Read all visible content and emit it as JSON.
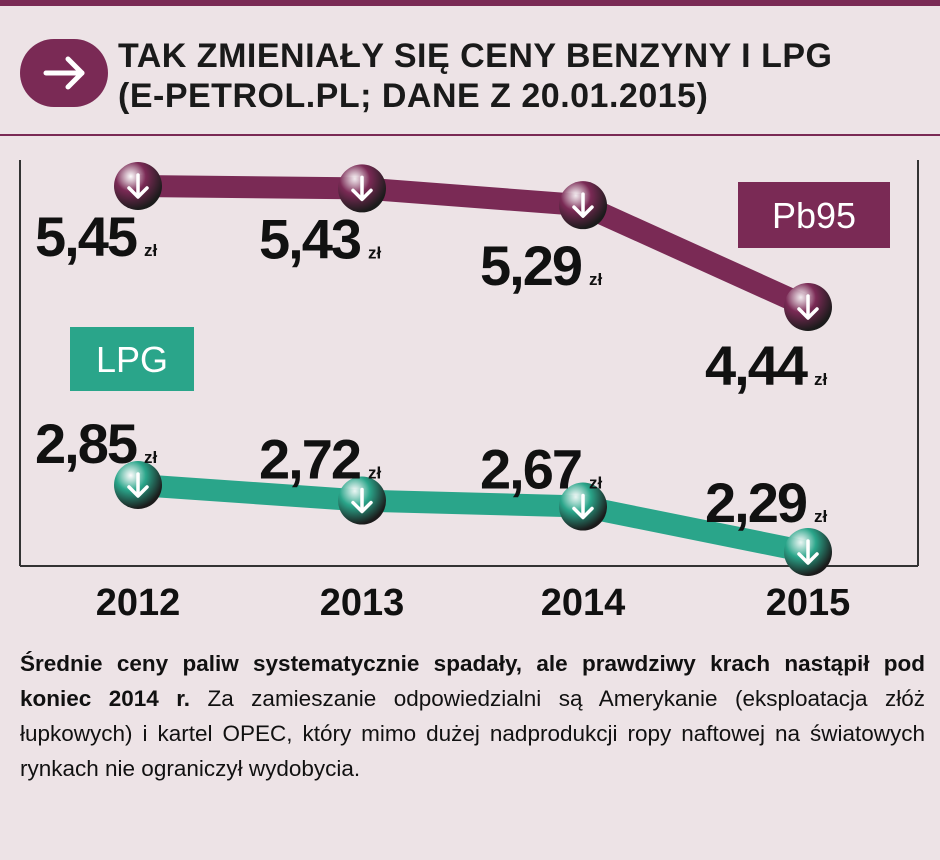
{
  "title": {
    "line1": "TAK ZMIENIAŁY SIĘ CENY BENZYNY I LPG",
    "line2": "(E-PETROL.PL; DANE Z 20.01.2015)"
  },
  "colors": {
    "pb95": "#7a2a55",
    "lpg": "#2aa58a",
    "background": "#ede3e6",
    "header_bg": "#ede3e6"
  },
  "icons": {
    "header": "arrow-right-icon",
    "points": "arrow-down-icon"
  },
  "chart_data": {
    "type": "line",
    "categories": [
      "2012",
      "2013",
      "2014",
      "2015"
    ],
    "unit": "zł",
    "ylim": [
      2.0,
      5.6
    ],
    "grid": false,
    "series": [
      {
        "name": "Pb95",
        "values": [
          5.45,
          5.43,
          5.29,
          4.44
        ],
        "labels": [
          "5,45",
          "5,43",
          "5,29",
          "4,44"
        ]
      },
      {
        "name": "LPG",
        "values": [
          2.85,
          2.72,
          2.67,
          2.29
        ],
        "labels": [
          "2,85",
          "2,72",
          "2,67",
          "2,29"
        ]
      }
    ]
  },
  "caption": {
    "bold": "Średnie ceny paliw systematycznie spadały, ale prawdziwy krach nastąpił pod koniec 2014 r.",
    "text": " Za zamieszanie odpowiedzialni są Amerykanie (eksploatacja złóż łupkowych) i kartel OPEC, który mimo dużej nadprodukcji ropy naftowej na światowych rynkach nie ograniczył wydobycia."
  }
}
